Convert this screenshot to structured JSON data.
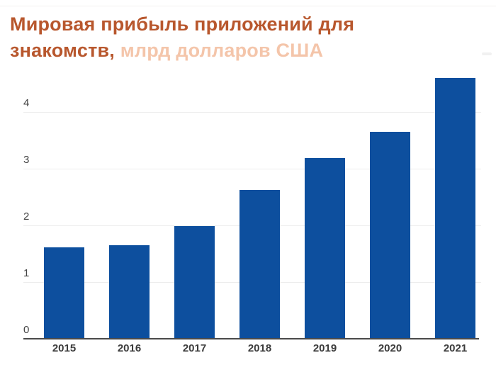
{
  "header": {
    "line1": "Мировая прибыль приложений для",
    "line2_main": "знакомств,",
    "line2_unit": "млрд долларов США",
    "title_main_color": "#b8572d",
    "title_unit_color": "#f4c5aa"
  },
  "icons": {
    "top_right": "faint-minimize-dash"
  },
  "chart_data": {
    "type": "bar",
    "categories": [
      "2015",
      "2016",
      "2017",
      "2018",
      "2019",
      "2020",
      "2021"
    ],
    "values": [
      1.61,
      1.65,
      1.99,
      2.63,
      3.19,
      3.65,
      4.6
    ],
    "title": "Мировая прибыль приложений для знакомств, млрд долларов США",
    "xlabel": "",
    "ylabel": "млрд долларов США",
    "ylim": [
      0,
      4.75
    ],
    "yticks": [
      0,
      1,
      2,
      3,
      4
    ],
    "grid": true,
    "legend": false,
    "bar_color": "#0d4f9e",
    "axis_color": "#4a4a4a",
    "gridline_color": "#ededed",
    "tick_label_color": "#444444",
    "category_label_color": "#3b3b3b"
  }
}
